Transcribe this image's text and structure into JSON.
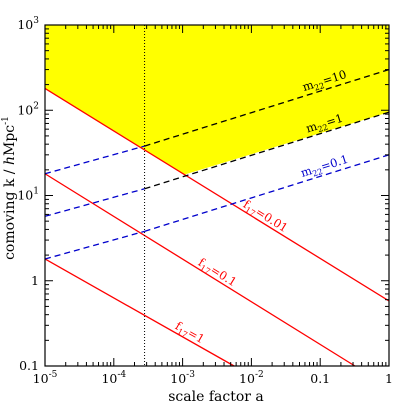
{
  "chart_data": {
    "type": "line",
    "title": "",
    "xlabel": "scale factor a",
    "ylabel_parts": [
      "comoving k",
      "/",
      "h",
      "Mpc",
      "-1"
    ],
    "xscale": "log",
    "yscale": "log",
    "xlim": [
      1e-05,
      1
    ],
    "ylim": [
      0.1,
      1000
    ],
    "grid": false,
    "x_major_ticks": [
      1e-05,
      0.0001,
      0.001,
      0.01,
      0.1,
      1
    ],
    "y_major_ticks": [
      0.1,
      1,
      10,
      100,
      1000
    ],
    "x_tick_labels": [
      {
        "mant": "10",
        "exp": "-5"
      },
      {
        "mant": "10",
        "exp": "-4"
      },
      {
        "mant": "10",
        "exp": "-3"
      },
      {
        "mant": "10",
        "exp": "-2"
      },
      {
        "mant": "0.1",
        "exp": ""
      },
      {
        "mant": "1",
        "exp": ""
      }
    ],
    "y_tick_labels": [
      {
        "mant": "0.1",
        "exp": ""
      },
      {
        "mant": "1",
        "exp": ""
      },
      {
        "mant": "10",
        "exp": "1"
      },
      {
        "mant": "10",
        "exp": "2"
      },
      {
        "mant": "10",
        "exp": "3"
      }
    ],
    "colors": {
      "red": "#ff0000",
      "black": "#000000",
      "blue": "#0000cc",
      "shade": "#ffff00"
    },
    "series": [
      {
        "label_base": "f",
        "label_sub": "17",
        "label_rest": "=1",
        "color": "red",
        "style": "solid",
        "points": [
          [
            1e-05,
            1.8
          ],
          [
            0.0056,
            0.1
          ]
        ]
      },
      {
        "label_base": "f",
        "label_sub": "17",
        "label_rest": "=0.1",
        "color": "red",
        "style": "solid",
        "points": [
          [
            1e-05,
            18
          ],
          [
            0.32,
            0.1
          ]
        ]
      },
      {
        "label_base": "f",
        "label_sub": "17",
        "label_rest": "=0.01",
        "color": "red",
        "style": "solid",
        "points": [
          [
            1e-05,
            180
          ],
          [
            1,
            0.58
          ]
        ]
      },
      {
        "label_base": "m",
        "label_sub": "22",
        "label_rest": "=10",
        "color": "black",
        "style": "dashed",
        "points": [
          [
            0.00028,
            38
          ],
          [
            1,
            300
          ]
        ]
      },
      {
        "label_base": "m",
        "label_sub": "22",
        "label_rest": "=1",
        "color": "black",
        "style": "dashed",
        "points": [
          [
            0.00028,
            12
          ],
          [
            1,
            95
          ]
        ]
      },
      {
        "label_base": "m",
        "label_sub": "22",
        "label_rest": "=0.1",
        "color": "blue",
        "style": "dashed",
        "points": [
          [
            0.00028,
            3.8
          ],
          [
            1,
            30
          ]
        ]
      },
      {
        "label_base": "",
        "label_sub": "",
        "label_rest": "",
        "color": "blue",
        "style": "dashed",
        "points": [
          [
            1e-05,
            18
          ],
          [
            0.00028,
            38
          ]
        ]
      },
      {
        "label_base": "",
        "label_sub": "",
        "label_rest": "",
        "color": "blue",
        "style": "dashed",
        "points": [
          [
            1e-05,
            5.7
          ],
          [
            0.00028,
            12
          ]
        ]
      },
      {
        "label_base": "",
        "label_sub": "",
        "label_rest": "",
        "color": "blue",
        "style": "dashed",
        "points": [
          [
            1e-05,
            1.8
          ],
          [
            0.00028,
            3.8
          ]
        ]
      }
    ],
    "vertical_line": {
      "x": 0.00028,
      "color": "black",
      "style": "dotted"
    },
    "shaded_region": {
      "color": "shade",
      "polygon": [
        [
          1e-05,
          1000
        ],
        [
          1,
          1000
        ],
        [
          1,
          95
        ],
        [
          0.00105,
          17.5
        ],
        [
          1e-05,
          180
        ]
      ]
    }
  }
}
